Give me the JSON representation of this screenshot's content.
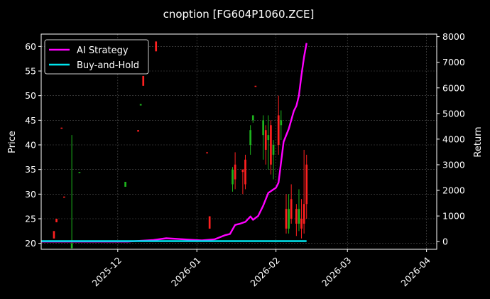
{
  "chart_data": {
    "type": "candlestick+line",
    "title": "cnoption [FG604P1060.ZCE]",
    "ylabel_left": "Price",
    "ylabel_right": "Return",
    "ylim_left": [
      18.8,
      62.5
    ],
    "ylim_right": [
      -300,
      8100
    ],
    "xlim": [
      "2025-11-01",
      "2026-04-05"
    ],
    "left_ticks": [
      20,
      25,
      30,
      35,
      40,
      45,
      50,
      55,
      60
    ],
    "right_ticks": [
      0,
      1000,
      2000,
      3000,
      4000,
      5000,
      6000,
      7000,
      8000
    ],
    "x_ticks": [
      "2025-12",
      "2026-01",
      "2026-02",
      "2026-03",
      "2026-04"
    ],
    "x_tick_dates": [
      "2025-12-01",
      "2026-01-01",
      "2026-02-01",
      "2026-03-01",
      "2026-04-01"
    ],
    "grid": true,
    "legend_position": "top-left",
    "colors": {
      "background": "#000000",
      "up": "#1db31d",
      "down": "#ff2020",
      "ai_strategy": "#ff00ff",
      "buy_and_hold": "#00e5ee",
      "grid": "#555555",
      "text": "#ffffff"
    },
    "series": [
      {
        "name": "AI Strategy",
        "color": "#ff00ff",
        "points": [
          [
            "2025-11-01",
            0
          ],
          [
            "2025-11-20",
            0
          ],
          [
            "2025-12-05",
            0
          ],
          [
            "2025-12-10",
            30
          ],
          [
            "2025-12-15",
            60
          ],
          [
            "2025-12-20",
            130
          ],
          [
            "2025-12-25",
            100
          ],
          [
            "2025-12-30",
            70
          ],
          [
            "2026-01-03",
            50
          ],
          [
            "2026-01-08",
            90
          ],
          [
            "2026-01-12",
            250
          ],
          [
            "2026-01-14",
            300
          ],
          [
            "2026-01-16",
            650
          ],
          [
            "2026-01-18",
            700
          ],
          [
            "2026-01-20",
            770
          ],
          [
            "2026-01-22",
            980
          ],
          [
            "2026-01-23",
            850
          ],
          [
            "2026-01-25",
            1000
          ],
          [
            "2026-01-27",
            1400
          ],
          [
            "2026-01-29",
            1900
          ],
          [
            "2026-02-01",
            2100
          ],
          [
            "2026-02-02",
            2300
          ],
          [
            "2026-02-03",
            3100
          ],
          [
            "2026-02-04",
            3900
          ],
          [
            "2026-02-06",
            4400
          ],
          [
            "2026-02-08",
            5100
          ],
          [
            "2026-02-09",
            5300
          ],
          [
            "2026-02-10",
            5700
          ],
          [
            "2026-02-11",
            6500
          ],
          [
            "2026-02-12",
            7200
          ],
          [
            "2026-02-13",
            7750
          ]
        ]
      },
      {
        "name": "Buy-and-Hold",
        "color": "#00e5ee",
        "points": [
          [
            "2025-11-01",
            20
          ],
          [
            "2026-02-13",
            20
          ]
        ]
      }
    ],
    "candles": [
      {
        "date": "2025-11-06",
        "open": 22.5,
        "close": 21.0,
        "high": 22.5,
        "low": 21.0
      },
      {
        "date": "2025-11-07",
        "open": 25.0,
        "close": 24.3,
        "high": 25.0,
        "low": 24.3
      },
      {
        "date": "2025-11-09",
        "open": 43.5,
        "close": 43.3,
        "high": 43.5,
        "low": 43.3
      },
      {
        "date": "2025-11-10",
        "open": 29.5,
        "close": 29.3,
        "high": 29.5,
        "low": 29.3
      },
      {
        "date": "2025-11-13",
        "open": 19.0,
        "close": 20.0,
        "high": 42.0,
        "low": 19.0
      },
      {
        "date": "2025-11-16",
        "open": 34.3,
        "close": 34.5,
        "high": 34.5,
        "low": 34.3
      },
      {
        "date": "2025-12-04",
        "open": 31.5,
        "close": 32.5,
        "high": 32.5,
        "low": 31.5
      },
      {
        "date": "2025-12-09",
        "open": 43.0,
        "close": 42.7,
        "high": 43.0,
        "low": 42.7
      },
      {
        "date": "2025-12-10",
        "open": 48.0,
        "close": 48.3,
        "high": 48.3,
        "low": 48.0
      },
      {
        "date": "2025-12-11",
        "open": 54.0,
        "close": 52.0,
        "high": 54.0,
        "low": 52.0
      },
      {
        "date": "2025-12-16",
        "open": 61.0,
        "close": 59.0,
        "high": 61.0,
        "low": 59.0
      },
      {
        "date": "2026-01-05",
        "open": 38.5,
        "close": 38.3,
        "high": 38.5,
        "low": 38.3
      },
      {
        "date": "2026-01-06",
        "open": 25.5,
        "close": 23.0,
        "high": 25.5,
        "low": 23.0
      },
      {
        "date": "2026-01-15",
        "open": 32.0,
        "close": 35.0,
        "high": 35.5,
        "low": 30.5
      },
      {
        "date": "2026-01-16",
        "open": 36.0,
        "close": 33.0,
        "high": 38.5,
        "low": 31.0
      },
      {
        "date": "2026-01-19",
        "open": 35.0,
        "close": 34.5,
        "high": 35.0,
        "low": 30.0
      },
      {
        "date": "2026-01-20",
        "open": 37.0,
        "close": 32.0,
        "high": 38.0,
        "low": 31.0
      },
      {
        "date": "2026-01-22",
        "open": 40.0,
        "close": 43.0,
        "high": 44.0,
        "low": 38.0
      },
      {
        "date": "2026-01-23",
        "open": 45.0,
        "close": 46.0,
        "high": 46.0,
        "low": 44.5
      },
      {
        "date": "2026-01-24",
        "open": 52.0,
        "close": 51.8,
        "high": 52.0,
        "low": 51.8
      },
      {
        "date": "2026-01-27",
        "open": 42.0,
        "close": 45.0,
        "high": 46.0,
        "low": 37.0
      },
      {
        "date": "2026-01-28",
        "open": 43.0,
        "close": 39.0,
        "high": 44.0,
        "low": 36.0
      },
      {
        "date": "2026-01-29",
        "open": 41.0,
        "close": 42.0,
        "high": 46.0,
        "low": 35.0
      },
      {
        "date": "2026-01-30",
        "open": 44.0,
        "close": 36.0,
        "high": 45.0,
        "low": 34.0
      },
      {
        "date": "2026-01-31",
        "open": 38.0,
        "close": 40.0,
        "high": 41.0,
        "low": 33.0
      },
      {
        "date": "2026-02-02",
        "open": 46.0,
        "close": 40.0,
        "high": 50.0,
        "low": 38.0
      },
      {
        "date": "2026-02-03",
        "open": 44.0,
        "close": 45.0,
        "high": 47.0,
        "low": 41.0
      },
      {
        "date": "2026-02-05",
        "open": 27.0,
        "close": 23.0,
        "high": 30.0,
        "low": 22.0
      },
      {
        "date": "2026-02-06",
        "open": 23.0,
        "close": 27.0,
        "high": 30.0,
        "low": 22.0
      },
      {
        "date": "2026-02-07",
        "open": 29.0,
        "close": 25.0,
        "high": 32.0,
        "low": 24.0
      },
      {
        "date": "2026-02-09",
        "open": 27.0,
        "close": 24.0,
        "high": 28.0,
        "low": 21.5
      },
      {
        "date": "2026-02-10",
        "open": 24.0,
        "close": 27.0,
        "high": 31.0,
        "low": 22.5
      },
      {
        "date": "2026-02-11",
        "open": 25.0,
        "close": 23.0,
        "high": 29.0,
        "low": 21.0
      },
      {
        "date": "2026-02-12",
        "open": 28.0,
        "close": 24.0,
        "high": 39.0,
        "low": 22.0
      },
      {
        "date": "2026-02-13",
        "open": 36.0,
        "close": 28.0,
        "high": 38.0,
        "low": 25.0
      }
    ]
  }
}
